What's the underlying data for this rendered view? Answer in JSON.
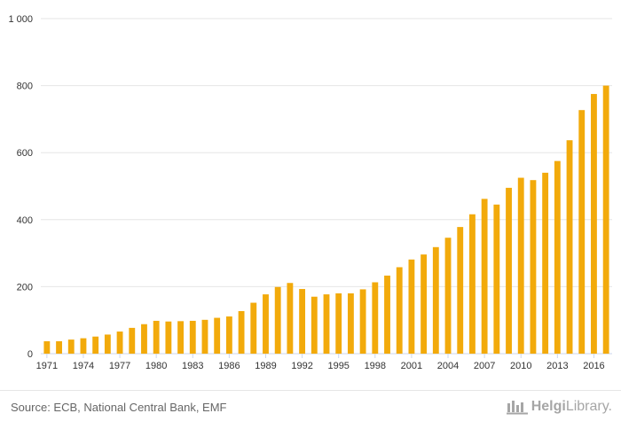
{
  "chart_data": {
    "type": "bar",
    "title": "",
    "xlabel": "",
    "ylabel": "",
    "ylim": [
      0,
      1000
    ],
    "y_ticks": [
      "0",
      "200",
      "400",
      "600",
      "800",
      "1 000"
    ],
    "x_ticks": [
      "1971",
      "1974",
      "1977",
      "1980",
      "1983",
      "1986",
      "1989",
      "1992",
      "1995",
      "1998",
      "2001",
      "2004",
      "2007",
      "2010",
      "2013",
      "2016"
    ],
    "categories": [
      "1971",
      "1972",
      "1973",
      "1974",
      "1975",
      "1976",
      "1977",
      "1978",
      "1979",
      "1980",
      "1981",
      "1982",
      "1983",
      "1984",
      "1985",
      "1986",
      "1987",
      "1988",
      "1989",
      "1990",
      "1991",
      "1992",
      "1993",
      "1994",
      "1995",
      "1996",
      "1997",
      "1998",
      "1999",
      "2000",
      "2001",
      "2002",
      "2003",
      "2004",
      "2005",
      "2006",
      "2007",
      "2008",
      "2009",
      "2010",
      "2011",
      "2012",
      "2013",
      "2014",
      "2015",
      "2016",
      "2017"
    ],
    "values": [
      37,
      37,
      42,
      46,
      51,
      57,
      66,
      77,
      88,
      98,
      96,
      97,
      98,
      101,
      107,
      111,
      127,
      152,
      177,
      199,
      211,
      193,
      170,
      177,
      180,
      180,
      192,
      213,
      233,
      258,
      281,
      296,
      318,
      346,
      378,
      416,
      462,
      445,
      495,
      525,
      518,
      540,
      575,
      637,
      727,
      775,
      800
    ],
    "grid": true,
    "colors": {
      "bar": "#f2aa0b",
      "grid": "#e6e6e6",
      "axis": "#ccd6eb",
      "tick_text": "#333333"
    }
  },
  "footer": {
    "source": "Source: ECB, National Central Bank, EMF",
    "brand_main": "Helgi",
    "brand_sub": "Library."
  }
}
